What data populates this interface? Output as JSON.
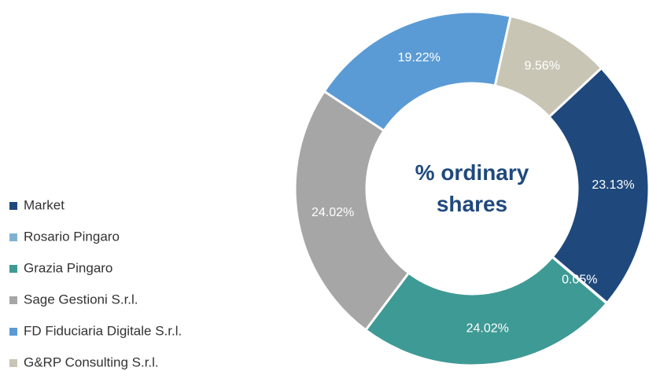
{
  "chart_data": {
    "type": "donut",
    "title": "% ordinary shares",
    "categories": [
      "Market",
      "Rosario Pingaro",
      "Grazia Pingaro",
      "Sage Gestioni S.r.l.",
      "FD Fiduciaria Digitale S.r.l.",
      "G&RP Consulting S.r.l."
    ],
    "values": [
      23.13,
      0.05,
      24.02,
      24.02,
      19.22,
      9.56
    ],
    "value_labels": [
      "23.13%",
      "0.05%",
      "24.02%",
      "24.02%",
      "19.22%",
      "9.56%"
    ],
    "colors": [
      "#1f497d",
      "#7fb1cf",
      "#3e9a94",
      "#a6a6a6",
      "#5b9bd5",
      "#c9c5b5"
    ],
    "legend": "left"
  }
}
